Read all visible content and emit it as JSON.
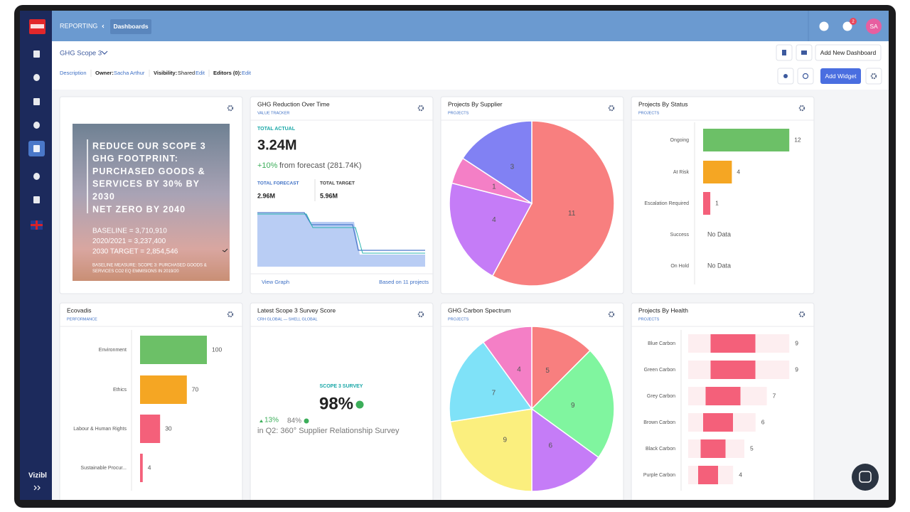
{
  "nav": {
    "section": "REPORTING",
    "page": "Dashboards",
    "notifications": "2",
    "avatar": "SA",
    "brand": "Vizibl"
  },
  "toolbar": {
    "dashboard": "GHG Scope 3",
    "add_dashboard": "Add New Dashboard",
    "description": "Description",
    "owner_label": "Owner:",
    "owner": "Sacha Arthur",
    "visibility_label": "Visibility:",
    "visibility": "Shared",
    "visibility_edit": "Edit",
    "editors_label": "Editors (0):",
    "editors_edit": "Edit",
    "add_widget": "Add Widget"
  },
  "widgets": {
    "goal": {
      "lines": [
        "REDUCE OUR SCOPE 3",
        "GHG FOOTPRINT:",
        "PURCHASED GOODS &",
        "SERVICES BY 30% BY",
        "2030",
        "NET ZERO BY 2040"
      ],
      "stats": [
        "BASELINE = 3,710,910",
        "2020/2021 = 3,237,400",
        "2030 TARGET = 2,854,546"
      ],
      "note": [
        "BASELINE MEASURE: SCOPE 3: PURCHASED GOODS &",
        "SERVICES CO2 EQ EMMISIONS IN 2019/20"
      ]
    },
    "reduction": {
      "title": "GHG Reduction Over Time",
      "subtitle": "VALUE TRACKER",
      "actual_label": "TOTAL ACTUAL",
      "actual": "3.24M",
      "change": "+10%",
      "change_text": "from forecast (281.74K)",
      "forecast_label": "TOTAL FORECAST",
      "forecast": "2.96M",
      "target_label": "TOTAL TARGET",
      "target": "5.96M",
      "link": "View Graph",
      "footnote": "Based on 11 projects"
    },
    "supplier": {
      "type": "pie",
      "title": "Projects By Supplier",
      "subtitle": "PROJECTS",
      "values": [
        11,
        4,
        1,
        3
      ],
      "colors": [
        "#f87f7f",
        "#c57cf7",
        "#f47fc6",
        "#8181f3"
      ]
    },
    "status": {
      "type": "hbar",
      "title": "Projects By Status",
      "subtitle": "PROJECTS",
      "categories": [
        "Ongoing",
        "At Risk",
        "Escalation Required",
        "Success",
        "On Hold"
      ],
      "values": [
        12,
        4,
        1,
        null,
        null
      ],
      "colors": [
        "#6cc067",
        "#f5a623",
        "#f4607a",
        null,
        null
      ],
      "empty_label": "No Data"
    },
    "ecovadis": {
      "type": "hbar",
      "title": "Ecovadis",
      "subtitle": "PERFORMANCE",
      "categories": [
        "Environment",
        "Ethics",
        "Labour & Human Rights",
        "Sustainable Procur..."
      ],
      "values": [
        100,
        70,
        30,
        4
      ],
      "colors": [
        "#6cc067",
        "#f5a623",
        "#f4607a",
        "#f4607a"
      ]
    },
    "survey": {
      "title": "Latest Scope 3 Survey Score",
      "subtitle": "CRH GLOBAL — SHELL GLOBAL",
      "label": "SCOPE 3 SURVEY",
      "score": "98%",
      "delta": "13%",
      "previous": "84%",
      "caption": "in Q2: 360° Supplier Relationship Survey"
    },
    "spectrum": {
      "type": "pie",
      "title": "GHG Carbon Spectrum",
      "subtitle": "PROJECTS",
      "values": [
        5,
        9,
        6,
        9,
        7,
        4
      ],
      "colors": [
        "#f87f7f",
        "#80f59f",
        "#c57cf7",
        "#fbef7e",
        "#7fe2f8",
        "#f47fc6"
      ]
    },
    "health": {
      "type": "hbar",
      "title": "Projects By Health",
      "subtitle": "PROJECTS",
      "categories": [
        "Blue Carbon",
        "Green Carbon",
        "Grey Carbon",
        "Brown Carbon",
        "Black Carbon",
        "Purple Carbon"
      ],
      "values": [
        9,
        9,
        7,
        6,
        5,
        4
      ],
      "color": "#f4607a"
    }
  }
}
